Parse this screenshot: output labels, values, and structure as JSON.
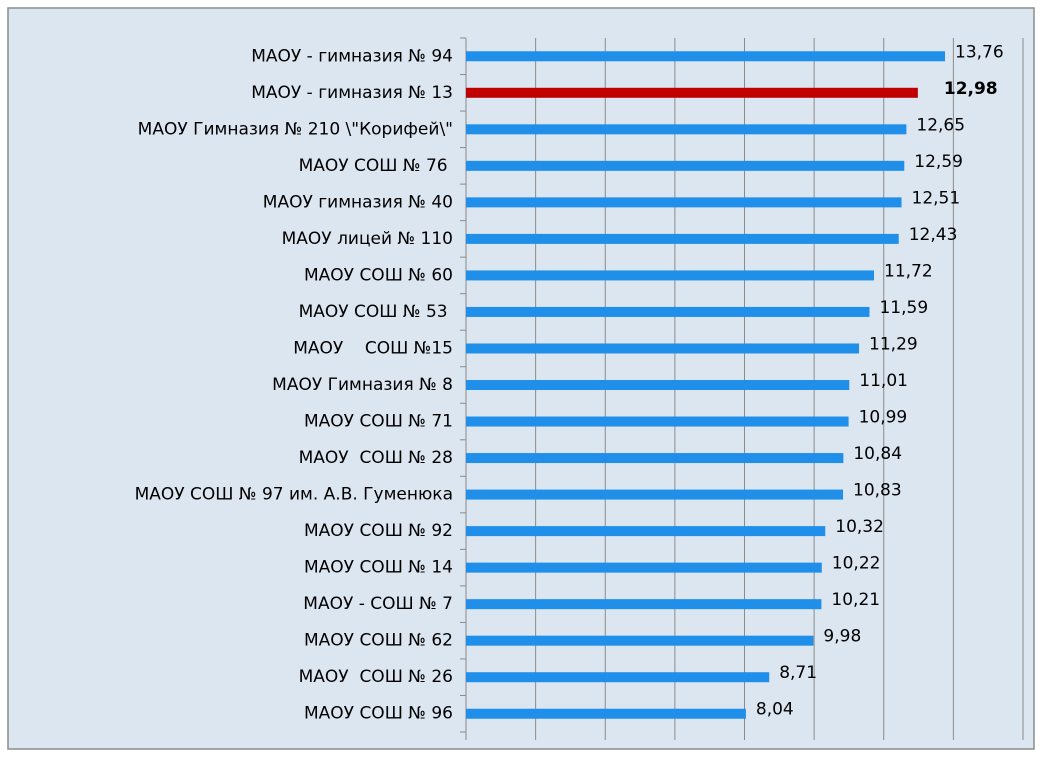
{
  "chart_data": {
    "type": "barh",
    "categories": [
      "МАОУ - гимназия № 94",
      "МАОУ - гимназия № 13",
      "МАОУ Гимназия № 210 \\\"Корифей\\\"",
      "МАОУ СОШ № 76 ",
      "МАОУ гимназия № 40",
      "МАОУ лицей № 110",
      "МАОУ СОШ № 60",
      "МАОУ СОШ № 53 ",
      "МАОУ    СОШ №15",
      "МАОУ Гимназия № 8",
      "МАОУ СОШ № 71",
      "МАОУ  СОШ № 28",
      "МАОУ СОШ № 97 им. А.В. Гуменюка",
      "МАОУ СОШ № 92",
      "МАОУ СОШ № 14",
      "МАОУ - СОШ № 7",
      "МАОУ СОШ № 62",
      "МАОУ  СОШ № 26",
      "МАОУ СОШ № 96"
    ],
    "values": [
      13.76,
      12.98,
      12.65,
      12.59,
      12.51,
      12.43,
      11.72,
      11.59,
      11.29,
      11.01,
      10.99,
      10.84,
      10.83,
      10.32,
      10.22,
      10.21,
      9.98,
      8.71,
      8.04
    ],
    "value_labels": [
      "13,76",
      "12,98",
      "12,65",
      "12,59",
      "12,51",
      "12,43",
      "11,72",
      "11,59",
      "11,29",
      "11,01",
      "10,99",
      "10,84",
      "10,83",
      "10,32",
      "10,22",
      "10,21",
      "9,98",
      "8,71",
      "8,04"
    ],
    "colors": [
      "#1f8fea",
      "#c00000",
      "#1f8fea",
      "#1f8fea",
      "#1f8fea",
      "#1f8fea",
      "#1f8fea",
      "#1f8fea",
      "#1f8fea",
      "#1f8fea",
      "#1f8fea",
      "#1f8fea",
      "#1f8fea",
      "#1f8fea",
      "#1f8fea",
      "#1f8fea",
      "#1f8fea",
      "#1f8fea",
      "#1f8fea"
    ],
    "highlight_color": "#c00000",
    "xlim": [
      0,
      16
    ],
    "xticks": [
      0,
      2,
      4,
      6,
      8,
      10,
      12,
      14,
      16
    ],
    "grid": true
  }
}
